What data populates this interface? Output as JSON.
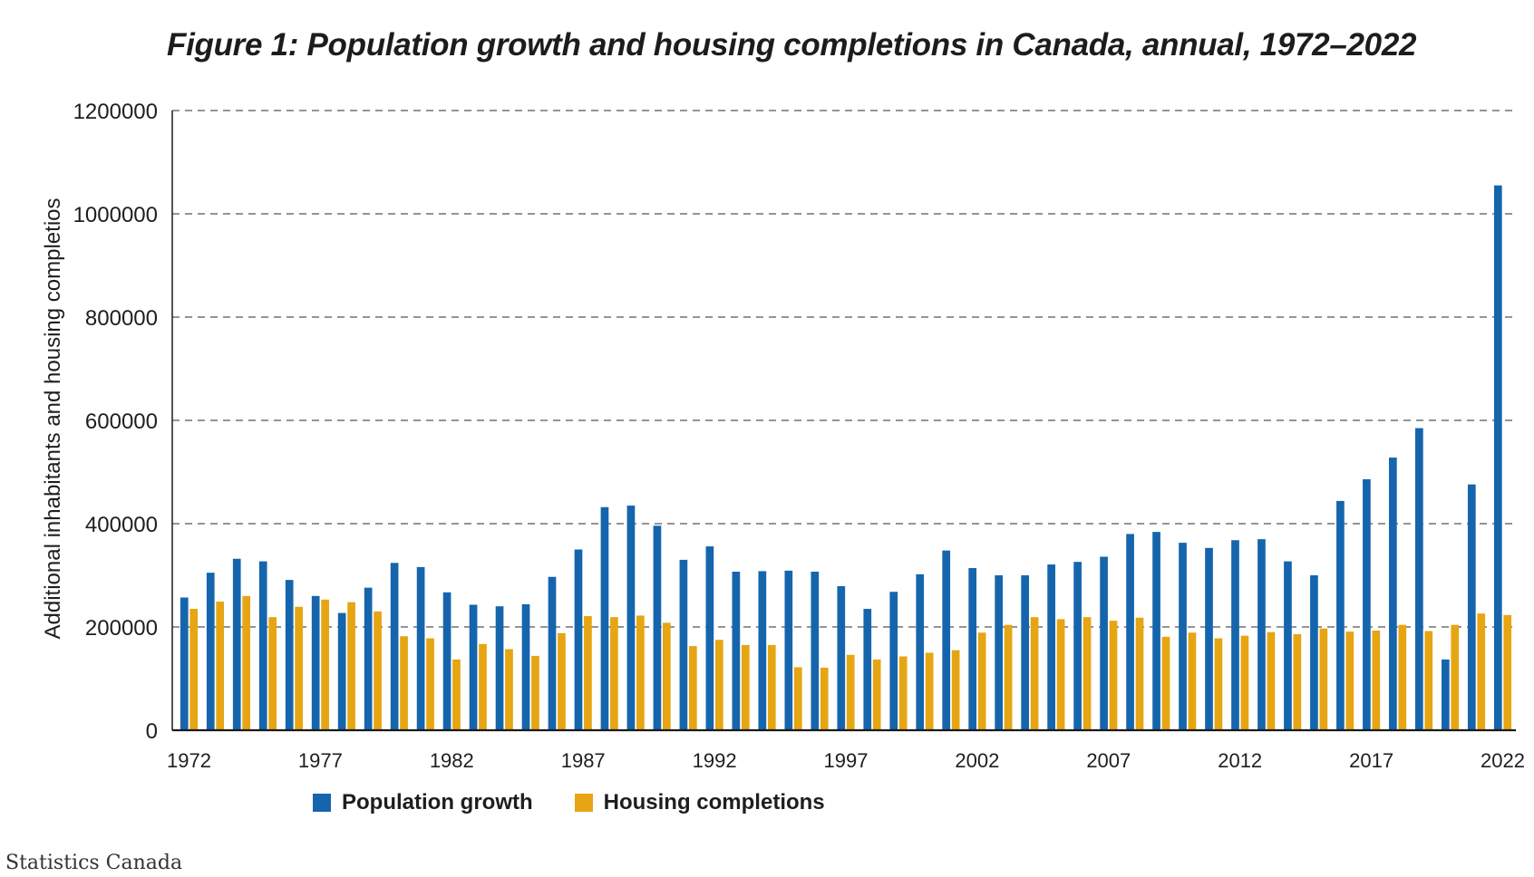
{
  "colors": {
    "population": "#1565ad",
    "housing": "#e6a512",
    "grid": "#555555",
    "axis": "#1a1a1a"
  },
  "source_note": "Statistics Canada",
  "chart_data": {
    "type": "bar",
    "title": "Figure 1: Population growth and housing completions in Canada, annual, 1972–2022",
    "xlabel": "",
    "ylabel": "Additional inhabitants and housing completios",
    "ylim": [
      0,
      1200000
    ],
    "yticks": [
      "0",
      "200000",
      "400000",
      "600000",
      "800000",
      "1000000",
      "1200000"
    ],
    "ytick_values": [
      0,
      200000,
      400000,
      600000,
      800000,
      1000000,
      1200000
    ],
    "grid": "horizontal-dashed",
    "legend_position": "bottom",
    "categories": [
      "1972",
      "1973",
      "1974",
      "1975",
      "1976",
      "1977",
      "1978",
      "1979",
      "1980",
      "1981",
      "1982",
      "1983",
      "1984",
      "1985",
      "1986",
      "1987",
      "1988",
      "1989",
      "1990",
      "1991",
      "1992",
      "1993",
      "1994",
      "1995",
      "1996",
      "1997",
      "1998",
      "1999",
      "2000",
      "2001",
      "2002",
      "2003",
      "2004",
      "2005",
      "2006",
      "2007",
      "2008",
      "2009",
      "2010",
      "2011",
      "2012",
      "2013",
      "2014",
      "2015",
      "2016",
      "2017",
      "2018",
      "2019",
      "2020",
      "2021",
      "2022"
    ],
    "xtick_labels": [
      "1972",
      "1977",
      "1982",
      "1987",
      "1992",
      "1997",
      "2002",
      "2007",
      "2012",
      "2017",
      "2022"
    ],
    "series": [
      {
        "name": "Population growth",
        "color": "#1565ad",
        "values": [
          257000,
          305000,
          332000,
          327000,
          291000,
          260000,
          227000,
          276000,
          324000,
          316000,
          267000,
          243000,
          240000,
          244000,
          297000,
          350000,
          432000,
          435000,
          396000,
          330000,
          356000,
          307000,
          308000,
          309000,
          307000,
          279000,
          235000,
          268000,
          302000,
          348000,
          314000,
          300000,
          300000,
          321000,
          326000,
          336000,
          380000,
          384000,
          363000,
          353000,
          368000,
          370000,
          327000,
          300000,
          444000,
          486000,
          528000,
          585000,
          137000,
          476000,
          1055000
        ]
      },
      {
        "name": "Housing completions",
        "color": "#e6a512",
        "values": [
          235000,
          249000,
          260000,
          219000,
          239000,
          253000,
          248000,
          230000,
          182000,
          178000,
          137000,
          167000,
          157000,
          144000,
          188000,
          221000,
          219000,
          222000,
          208000,
          163000,
          175000,
          165000,
          165000,
          122000,
          121000,
          146000,
          137000,
          143000,
          150000,
          155000,
          189000,
          204000,
          219000,
          215000,
          219000,
          212000,
          218000,
          181000,
          189000,
          178000,
          183000,
          190000,
          186000,
          197000,
          191000,
          193000,
          204000,
          192000,
          204000,
          226000,
          223000
        ]
      }
    ]
  }
}
